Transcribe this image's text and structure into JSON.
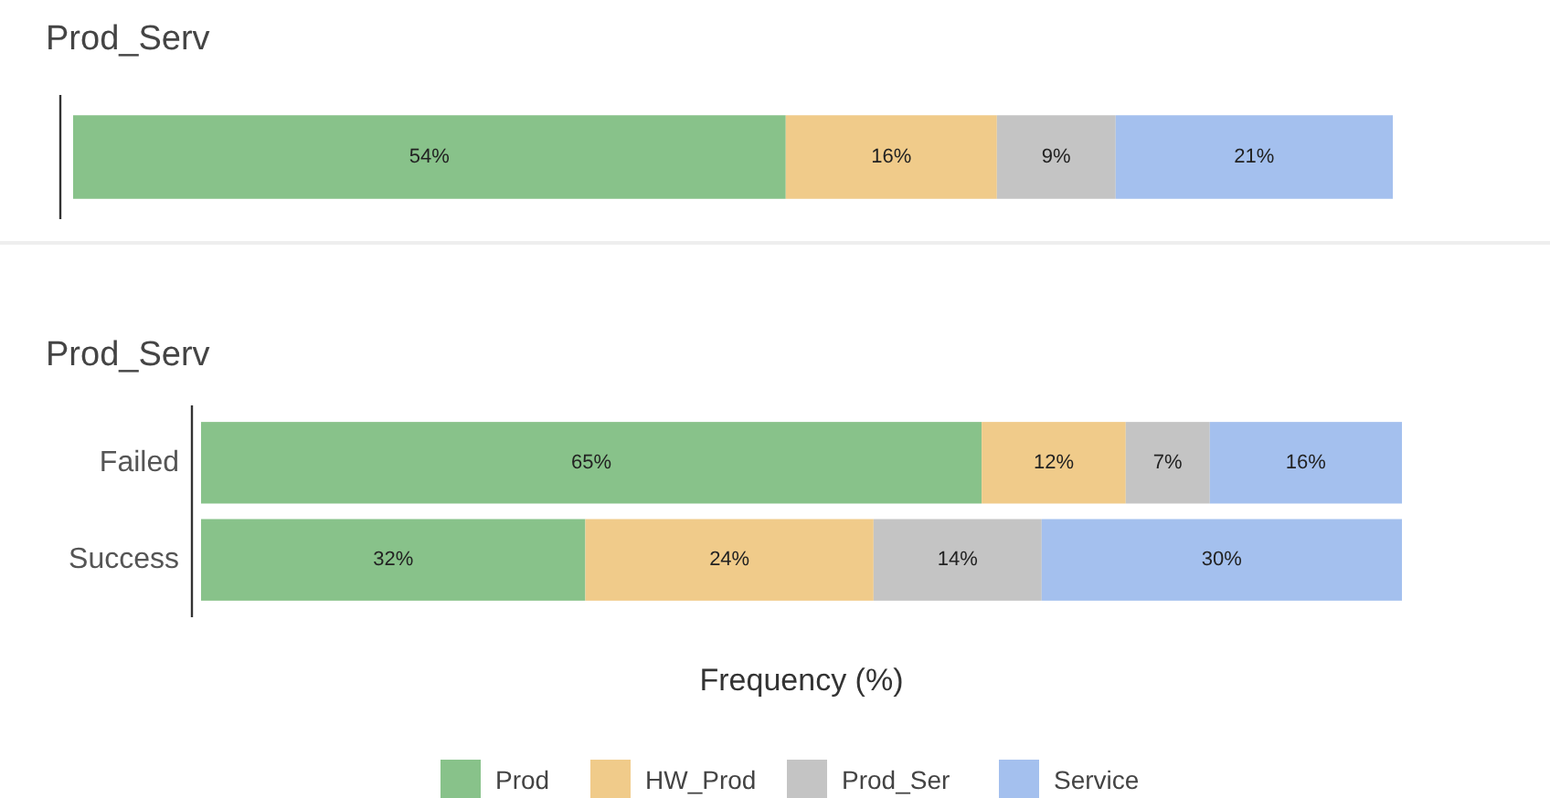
{
  "chart_data": [
    {
      "type": "bar",
      "title": "Prod_Serv",
      "orientation": "horizontal",
      "stacked": true,
      "categories": [
        null
      ],
      "xlim": [
        0,
        100
      ],
      "tick_labels": false,
      "legend": false,
      "series": [
        {
          "color": "#88c28a",
          "values": [
            54
          ],
          "value_labels": [
            "54%"
          ]
        },
        {
          "color": "#f0cb8a",
          "values": [
            16
          ],
          "value_labels": [
            "16%"
          ]
        },
        {
          "color": "#c4c4c4",
          "values": [
            9
          ],
          "value_labels": [
            "9%"
          ]
        },
        {
          "color": "#a4c0ee",
          "values": [
            21
          ],
          "value_labels": [
            "21%"
          ]
        }
      ]
    },
    {
      "type": "bar",
      "title": "Prod_Serv",
      "xlabel": "Frequency (%)",
      "orientation": "horizontal",
      "stacked": true,
      "categories": [
        "Failed",
        "Success"
      ],
      "xlim": [
        0,
        100
      ],
      "tick_labels": "y",
      "legend": "bottom",
      "series": [
        {
          "name": "Prod",
          "color": "#88c28a",
          "values": [
            65,
            32
          ],
          "value_labels": [
            "65%",
            "32%"
          ]
        },
        {
          "name": "HW_Prod",
          "color": "#f0cb8a",
          "values": [
            12,
            24
          ],
          "value_labels": [
            "12%",
            "24%"
          ]
        },
        {
          "name": "Prod_Ser",
          "color": "#c4c4c4",
          "values": [
            7,
            14
          ],
          "value_labels": [
            "7%",
            "14%"
          ]
        },
        {
          "name": "Service",
          "color": "#a4c0ee",
          "values": [
            16,
            30
          ],
          "value_labels": [
            "16%",
            "30%"
          ]
        }
      ]
    }
  ]
}
